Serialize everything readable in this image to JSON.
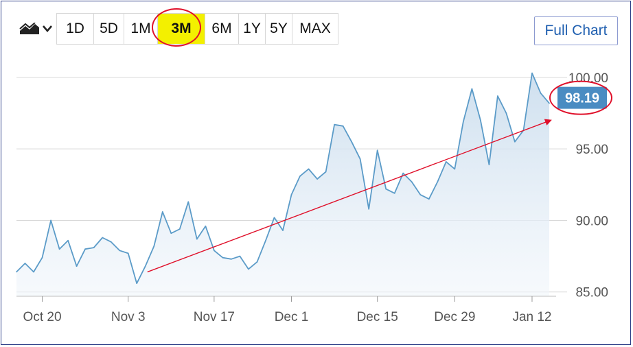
{
  "toolbar": {
    "chart_type_icon": "area-chart-icon",
    "dropdown_icon": "chevron-down-icon",
    "ranges": [
      "1D",
      "5D",
      "1M",
      "3M",
      "6M",
      "1Y",
      "5Y",
      "MAX"
    ],
    "active_range": "3M",
    "highlight_color": "#f3f000",
    "full_chart_label": "Full Chart"
  },
  "chart_data": {
    "type": "area",
    "x_tick_labels": [
      "Oct 20",
      "Nov 3",
      "Nov 17",
      "Dec 1",
      "Dec 15",
      "Dec 29",
      "Jan 12"
    ],
    "y_tick_labels": [
      "100.00",
      "95.00",
      "90.00",
      "85.00"
    ],
    "ylim": [
      84.7,
      101.0
    ],
    "grid": true,
    "x": [
      "Oct 17",
      "Oct 18",
      "Oct 19",
      "Oct 20",
      "Oct 21",
      "Oct 24",
      "Oct 25",
      "Oct 26",
      "Oct 27",
      "Oct 28",
      "Oct 31",
      "Nov 1",
      "Nov 2",
      "Nov 3",
      "Nov 4",
      "Nov 7",
      "Nov 8",
      "Nov 9",
      "Nov 10",
      "Nov 11",
      "Nov 14",
      "Nov 15",
      "Nov 16",
      "Nov 17",
      "Nov 18",
      "Nov 21",
      "Nov 22",
      "Nov 23",
      "Nov 25",
      "Nov 28",
      "Nov 29",
      "Nov 30",
      "Dec 1",
      "Dec 2",
      "Dec 5",
      "Dec 6",
      "Dec 7",
      "Dec 8",
      "Dec 9",
      "Dec 12",
      "Dec 13",
      "Dec 14",
      "Dec 15",
      "Dec 16",
      "Dec 19",
      "Dec 20",
      "Dec 21",
      "Dec 22",
      "Dec 23",
      "Dec 27",
      "Dec 28",
      "Dec 29",
      "Dec 30",
      "Jan 3",
      "Jan 4",
      "Jan 5",
      "Jan 6",
      "Jan 9",
      "Jan 10",
      "Jan 11",
      "Jan 12",
      "Jan 13",
      "Jan 17"
    ],
    "values": [
      86.4,
      87.0,
      86.4,
      87.4,
      90.0,
      88.0,
      88.6,
      86.8,
      88.0,
      88.1,
      88.8,
      88.5,
      87.9,
      87.7,
      85.6,
      86.8,
      88.2,
      90.6,
      89.1,
      89.4,
      91.3,
      88.7,
      89.6,
      87.9,
      87.4,
      87.3,
      87.5,
      86.6,
      87.1,
      88.6,
      90.2,
      89.3,
      91.8,
      93.1,
      93.6,
      92.9,
      93.4,
      96.7,
      96.6,
      95.5,
      94.3,
      90.8,
      94.9,
      92.2,
      91.9,
      93.3,
      92.7,
      91.8,
      91.5,
      92.7,
      94.1,
      93.6,
      96.9,
      99.2,
      97.0,
      93.9,
      98.7,
      97.5,
      95.5,
      96.3,
      100.3,
      98.9,
      98.19
    ],
    "series": [
      {
        "values": [
          86.4,
          87.0,
          86.4,
          87.4,
          90.0,
          88.0,
          88.6,
          86.8,
          88.0,
          88.1,
          88.8,
          88.5,
          87.9,
          87.7,
          85.6,
          86.8,
          88.2,
          90.6,
          89.1,
          89.4,
          91.3,
          88.7,
          89.6,
          87.9,
          87.4,
          87.3,
          87.5,
          86.6,
          87.1,
          88.6,
          90.2,
          89.3,
          91.8,
          93.1,
          93.6,
          92.9,
          93.4,
          96.7,
          96.6,
          95.5,
          94.3,
          90.8,
          94.9,
          92.2,
          91.9,
          93.3,
          92.7,
          91.8,
          91.5,
          92.7,
          94.1,
          93.6,
          96.9,
          99.2,
          97.0,
          93.9,
          98.7,
          97.5,
          95.5,
          96.3,
          100.3,
          98.9,
          98.19
        ]
      }
    ],
    "last_price_label": "98.19",
    "line_color": "#5b9bc8",
    "fill_color": "#dce9f4",
    "price_badge_color": "#4a8cc2",
    "annotation_color": "#e0102a",
    "trend_arrow": {
      "from": {
        "x": "Nov 7",
        "y": 86.4
      },
      "to": {
        "x": "Jan 17",
        "y": 97.0
      }
    }
  }
}
